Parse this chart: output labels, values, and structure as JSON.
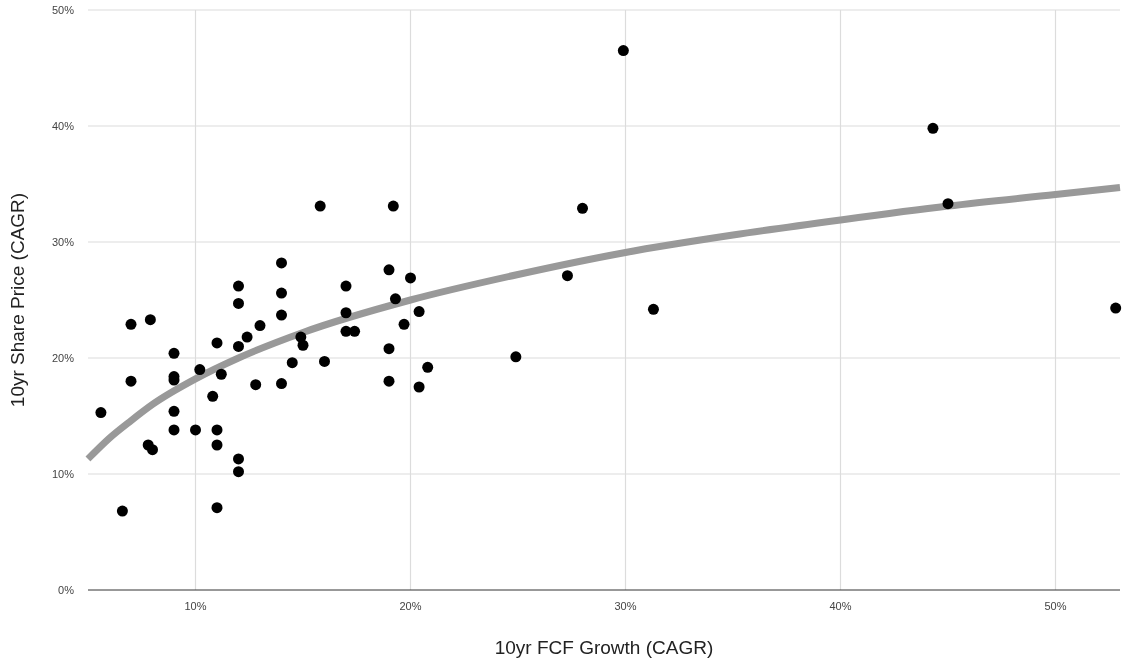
{
  "chart_data": {
    "type": "scatter",
    "xlabel": "10yr FCF Growth (CAGR)",
    "ylabel": "10yr Share Price (CAGR)",
    "xlim": [
      5,
      53
    ],
    "ylim": [
      0,
      50
    ],
    "xticks": [
      {
        "value": 10,
        "label": "10%"
      },
      {
        "value": 20,
        "label": "20%"
      },
      {
        "value": 30,
        "label": "30%"
      },
      {
        "value": 40,
        "label": "40%"
      },
      {
        "value": 50,
        "label": "50%"
      }
    ],
    "yticks": [
      {
        "value": 0,
        "label": "0%"
      },
      {
        "value": 10,
        "label": "10%"
      },
      {
        "value": 20,
        "label": "20%"
      },
      {
        "value": 30,
        "label": "30%"
      },
      {
        "value": 40,
        "label": "40%"
      },
      {
        "value": 50,
        "label": "50%"
      }
    ],
    "grid": true,
    "marker": "circle",
    "series": [
      {
        "type": "scatter",
        "color": "#000000",
        "x": [
          14.0,
          12.0,
          14.0,
          12.0,
          14.0,
          7.0,
          7.9,
          13.0,
          12.4,
          12.0,
          11.0,
          9.0,
          10.2,
          11.2,
          7.0,
          9.0,
          9.0,
          12.8,
          14.0,
          10.8,
          5.6,
          9.0,
          9.0,
          10.0,
          11.0,
          7.8,
          8.0,
          11.0,
          12.0,
          12.0,
          6.6,
          11.0,
          15.8,
          19.2,
          19.0,
          20.0,
          17.0,
          19.3,
          17.0,
          20.4,
          19.7,
          17.0,
          17.4,
          14.9,
          15.0,
          14.5,
          16.0,
          19.0,
          20.8,
          19.0,
          20.4,
          24.9,
          27.3,
          28.0,
          29.9,
          31.3,
          44.3,
          45.0,
          52.8
        ],
        "values": [
          28.2,
          26.2,
          25.6,
          24.7,
          23.7,
          22.9,
          23.3,
          22.8,
          21.8,
          21.0,
          21.3,
          20.4,
          19.0,
          18.6,
          18.0,
          18.4,
          18.1,
          17.7,
          17.8,
          16.7,
          15.3,
          15.4,
          13.8,
          13.8,
          13.8,
          12.5,
          12.1,
          12.5,
          11.3,
          10.2,
          6.8,
          7.1,
          33.1,
          33.1,
          27.6,
          26.9,
          26.2,
          25.1,
          23.9,
          24.0,
          22.9,
          22.3,
          22.3,
          21.8,
          21.1,
          19.6,
          19.7,
          20.8,
          19.2,
          18.0,
          17.5,
          20.1,
          27.1,
          32.9,
          46.5,
          24.2,
          39.8,
          33.3,
          24.3
        ]
      },
      {
        "type": "line",
        "color": "#999999",
        "marker": "none",
        "x": [
          5,
          6,
          7,
          8,
          10,
          12,
          15,
          20,
          25,
          30,
          35,
          40,
          45,
          50,
          53
        ],
        "values": [
          11.3,
          13.1,
          14.6,
          16.0,
          18.2,
          20.0,
          22.2,
          25.0,
          27.2,
          29.1,
          30.6,
          31.9,
          33.1,
          34.1,
          34.7
        ]
      }
    ]
  }
}
